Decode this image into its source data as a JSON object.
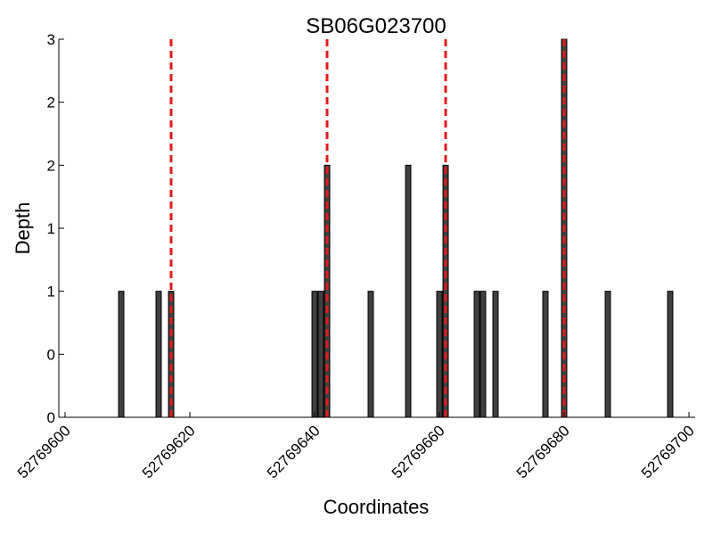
{
  "chart_data": {
    "type": "bar",
    "title": "SB06G023700",
    "xlabel": "Coordinates",
    "ylabel": "Depth",
    "xlim": [
      52769599,
      52769701
    ],
    "ylim": [
      0,
      3
    ],
    "x_ticks": [
      52769600,
      52769620,
      52769640,
      52769660,
      52769680,
      52769700
    ],
    "x_tick_labels": [
      "52769600",
      "52769620",
      "52769640",
      "52769660",
      "52769680",
      "52769700"
    ],
    "y_ticks": [
      0,
      0.5,
      1,
      1.5,
      2,
      2.5,
      3
    ],
    "y_tick_labels": [
      "0",
      "0",
      "1",
      "1",
      "2",
      "2",
      "3"
    ],
    "grid": false,
    "bar_color": "#404040",
    "bar_edge_color": "#000000",
    "bars": [
      {
        "x": 52769609,
        "depth": 1
      },
      {
        "x": 52769615,
        "depth": 1
      },
      {
        "x": 52769617,
        "depth": 1
      },
      {
        "x": 52769640,
        "depth": 1
      },
      {
        "x": 52769641,
        "depth": 1
      },
      {
        "x": 52769642,
        "depth": 2
      },
      {
        "x": 52769649,
        "depth": 1
      },
      {
        "x": 52769655,
        "depth": 2
      },
      {
        "x": 52769660,
        "depth": 1
      },
      {
        "x": 52769661,
        "depth": 2
      },
      {
        "x": 52769666,
        "depth": 1
      },
      {
        "x": 52769667,
        "depth": 1
      },
      {
        "x": 52769669,
        "depth": 1
      },
      {
        "x": 52769677,
        "depth": 1
      },
      {
        "x": 52769680,
        "depth": 3
      },
      {
        "x": 52769687,
        "depth": 1
      },
      {
        "x": 52769697,
        "depth": 1
      }
    ],
    "markers": {
      "color": "#e41a1c",
      "style": "dashed",
      "x": [
        52769617,
        52769642,
        52769661,
        52769680
      ]
    }
  }
}
